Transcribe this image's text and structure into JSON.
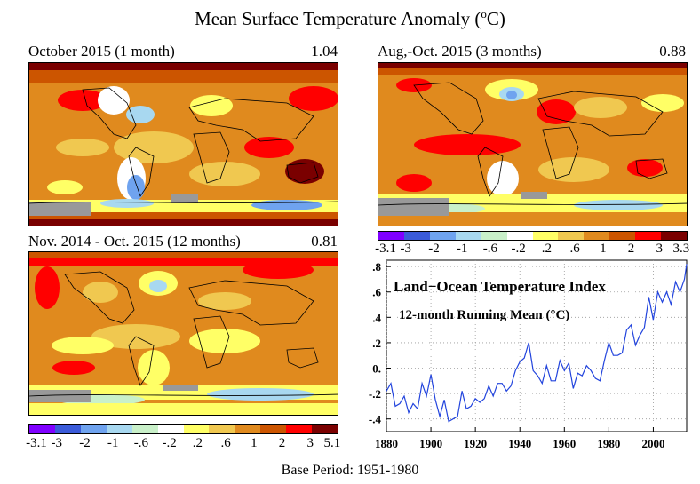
{
  "title": "Mean Surface Temperature Anomaly (",
  "title_sup": "o",
  "title_unit": "C)",
  "base_period": "Base Period: 1951-1980",
  "panels": [
    {
      "title": "October 2015 (1 month)",
      "value": "1.04"
    },
    {
      "title": "Aug,-Oct. 2015 (3 months)",
      "value": "0.88"
    },
    {
      "title": "Nov. 2014 - Oct. 2015 (12 months)",
      "value": "0.81"
    }
  ],
  "scale_colors": [
    "#7f00ff",
    "#3b5bd9",
    "#6fa3ef",
    "#a8d8f0",
    "#c9f0c9",
    "#ffffff",
    "#ffff66",
    "#f0c850",
    "#e08a1e",
    "#cc5500",
    "#ff0000",
    "#7a0000"
  ],
  "scale_small": {
    "labels": [
      "-3.1",
      "-3",
      "-2",
      "-1",
      "-.6",
      "-.2",
      ".2",
      ".6",
      "1",
      "2",
      "3",
      "3.3"
    ]
  },
  "scale_large": {
    "labels": [
      "-3.1",
      "-3",
      "-2",
      "-1",
      "-.6",
      "-.2",
      ".2",
      ".6",
      "1",
      "2",
      "3",
      "5.1"
    ]
  },
  "chart_data": {
    "type": "line",
    "title": "Land−Ocean Temperature Index",
    "subtitle": "12-month Running Mean (°C)",
    "xlim": [
      1880,
      2015
    ],
    "ylim": [
      -0.5,
      0.85
    ],
    "xticks": [
      1880,
      1900,
      1920,
      1940,
      1960,
      1980,
      2000
    ],
    "yticks": [
      -0.4,
      -0.2,
      0.0,
      0.2,
      0.4,
      0.6,
      0.8
    ],
    "ytick_labels": [
      "-.4",
      "-.2",
      "0.",
      ".2",
      ".4",
      ".6",
      ".8"
    ],
    "series": [
      {
        "color": "#2244dd",
        "x": [
          1880,
          1882,
          1884,
          1886,
          1888,
          1890,
          1892,
          1894,
          1896,
          1898,
          1900,
          1902,
          1904,
          1906,
          1908,
          1910,
          1912,
          1914,
          1916,
          1918,
          1920,
          1922,
          1924,
          1926,
          1928,
          1930,
          1932,
          1934,
          1936,
          1938,
          1940,
          1942,
          1944,
          1946,
          1948,
          1950,
          1952,
          1954,
          1956,
          1958,
          1960,
          1962,
          1964,
          1966,
          1968,
          1970,
          1972,
          1974,
          1976,
          1978,
          1980,
          1982,
          1984,
          1986,
          1988,
          1990,
          1992,
          1994,
          1996,
          1998,
          2000,
          2002,
          2004,
          2006,
          2008,
          2010,
          2012,
          2014,
          2015
        ],
        "y": [
          -0.18,
          -0.12,
          -0.3,
          -0.28,
          -0.22,
          -0.35,
          -0.28,
          -0.32,
          -0.12,
          -0.22,
          -0.05,
          -0.25,
          -0.38,
          -0.25,
          -0.42,
          -0.4,
          -0.38,
          -0.18,
          -0.32,
          -0.3,
          -0.24,
          -0.27,
          -0.24,
          -0.14,
          -0.22,
          -0.12,
          -0.12,
          -0.18,
          -0.14,
          -0.02,
          0.05,
          0.08,
          0.2,
          -0.02,
          -0.06,
          -0.12,
          0.02,
          -0.1,
          -0.1,
          0.06,
          -0.02,
          0.04,
          -0.16,
          -0.04,
          -0.06,
          0.02,
          -0.02,
          -0.08,
          -0.1,
          0.06,
          0.2,
          0.1,
          0.1,
          0.12,
          0.3,
          0.34,
          0.18,
          0.26,
          0.32,
          0.56,
          0.38,
          0.6,
          0.52,
          0.6,
          0.5,
          0.68,
          0.6,
          0.7,
          0.82
        ]
      }
    ]
  }
}
